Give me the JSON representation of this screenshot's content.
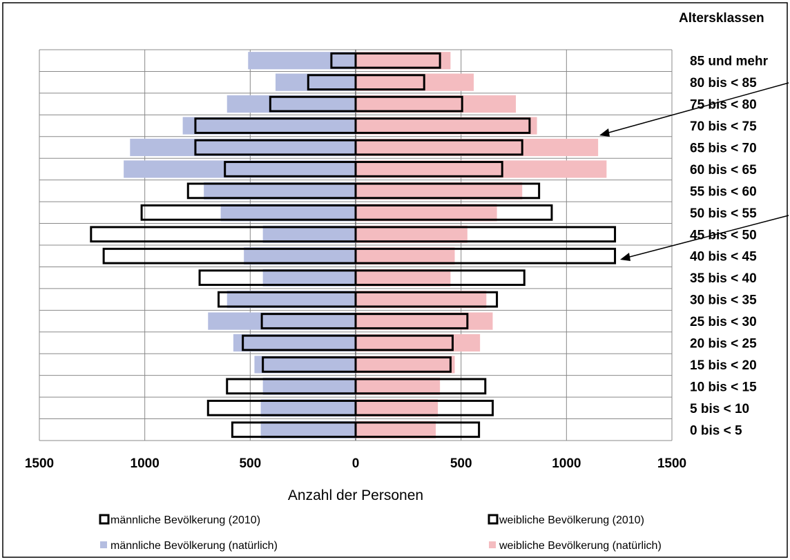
{
  "chart_data": {
    "type": "bar",
    "orientation": "horizontal",
    "subtype": "population-pyramid",
    "title": "",
    "xlabel": "Anzahl der Personen",
    "age_header": "Altersklassen",
    "xlim": [
      -1500,
      1500
    ],
    "x_ticks": [
      -1500,
      -1000,
      -500,
      0,
      500,
      1000,
      1500
    ],
    "x_tick_labels": [
      "1500",
      "1000",
      "500",
      "0",
      "500",
      "1000",
      "1500"
    ],
    "categories": [
      "0 bis < 5",
      "5 bis < 10",
      "10 bis < 15",
      "15 bis < 20",
      "20 bis < 25",
      "25 bis < 30",
      "30 bis < 35",
      "35 bis < 40",
      "40 bis < 45",
      "45 bis < 50",
      "50 bis < 55",
      "55 bis < 60",
      "60 bis < 65",
      "65 bis < 70",
      "70 bis < 75",
      "75 bis < 80",
      "80 bis < 85",
      "85 und mehr"
    ],
    "series": [
      {
        "name": "männliche Bevölkerung (natürlich)",
        "side": "left",
        "style": "filled",
        "color": "#b4bde0",
        "values": [
          450,
          450,
          440,
          480,
          580,
          700,
          610,
          440,
          530,
          440,
          640,
          720,
          1100,
          1070,
          820,
          610,
          380,
          510
        ]
      },
      {
        "name": "weibliche Bevölkerung (natürlich)",
        "side": "right",
        "style": "filled",
        "color": "#f4bcc0",
        "values": [
          380,
          390,
          400,
          470,
          590,
          650,
          620,
          450,
          470,
          530,
          670,
          790,
          1190,
          1150,
          860,
          760,
          560,
          450
        ]
      },
      {
        "name": "männliche Bevölkerung (2010)",
        "side": "left",
        "style": "outline",
        "color": "#000000",
        "values": [
          585,
          700,
          610,
          440,
          535,
          445,
          650,
          740,
          1195,
          1255,
          1015,
          795,
          620,
          760,
          760,
          405,
          225,
          115
        ]
      },
      {
        "name": "weibliche Bevölkerung (2010)",
        "side": "right",
        "style": "outline",
        "color": "#000000",
        "values": [
          585,
          650,
          615,
          450,
          460,
          530,
          670,
          800,
          1230,
          1230,
          930,
          870,
          695,
          790,
          825,
          505,
          325,
          400
        ]
      }
    ],
    "grid": true,
    "legend": "bottom"
  }
}
